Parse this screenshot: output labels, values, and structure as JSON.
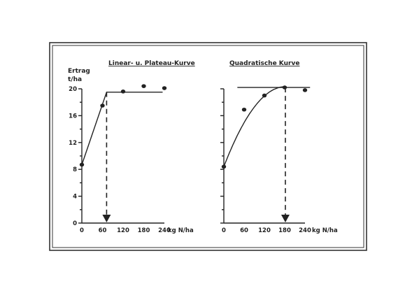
{
  "chart_data": [
    {
      "type": "line",
      "title": "Linear- u. Plateau-Kurve",
      "ylabel_line1": "Ertrag",
      "ylabel_line2": "t/ha",
      "xlabel": "kg N/ha",
      "xlim": [
        0,
        240
      ],
      "ylim": [
        0,
        20
      ],
      "xticks": [
        0,
        60,
        120,
        180,
        240
      ],
      "yticks": [
        0,
        4,
        8,
        12,
        16,
        20
      ],
      "points": [
        {
          "x": 0,
          "y": 8.7
        },
        {
          "x": 60,
          "y": 17.5
        },
        {
          "x": 120,
          "y": 19.6
        },
        {
          "x": 180,
          "y": 20.4
        },
        {
          "x": 240,
          "y": 20.1
        }
      ],
      "curve": [
        {
          "x": 0,
          "y": 8.7
        },
        {
          "x": 72,
          "y": 19.5
        },
        {
          "x": 235,
          "y": 19.5
        }
      ],
      "optimum_n": 72,
      "grid": false
    },
    {
      "type": "line",
      "title": "Quadratische Kurve",
      "xlabel": "kg N/ha",
      "xlim": [
        0,
        240
      ],
      "ylim": [
        0,
        20
      ],
      "xticks": [
        0,
        60,
        120,
        180,
        240
      ],
      "points": [
        {
          "x": 0,
          "y": 8.4
        },
        {
          "x": 60,
          "y": 16.9
        },
        {
          "x": 120,
          "y": 19.0
        },
        {
          "x": 180,
          "y": 20.2
        },
        {
          "x": 240,
          "y": 19.8
        }
      ],
      "curve_coefficients": {
        "a": 8.4,
        "b": 0.131,
        "c": -0.00036
      },
      "plateau_y": 20.2,
      "optimum_n": 182,
      "grid": false
    }
  ]
}
